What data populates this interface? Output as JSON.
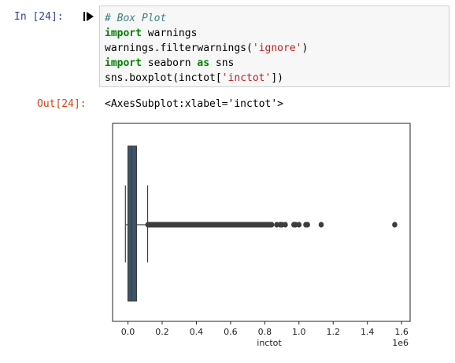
{
  "cell": {
    "in_prompt": "In [24]:",
    "out_prompt": "Out[24]:",
    "code_lines": [
      [
        {
          "t": "# Box Plot",
          "c": "cm"
        }
      ],
      [
        {
          "t": "import",
          "c": "kw"
        },
        {
          "t": " warnings",
          "c": ""
        }
      ],
      [
        {
          "t": "warnings.filterwarnings(",
          "c": ""
        },
        {
          "t": "'ignore'",
          "c": "st"
        },
        {
          "t": ")",
          "c": ""
        }
      ],
      [
        {
          "t": "import",
          "c": "kw"
        },
        {
          "t": " seaborn ",
          "c": ""
        },
        {
          "t": "as",
          "c": "kw"
        },
        {
          "t": " sns",
          "c": ""
        }
      ],
      [
        {
          "t": "sns.boxplot(inctot[",
          "c": ""
        },
        {
          "t": "'inctot'",
          "c": "st"
        },
        {
          "t": "])",
          "c": ""
        }
      ]
    ],
    "output_text": "<AxesSubplot:xlabel='inctot'>"
  },
  "chart_data": {
    "type": "box",
    "xlabel": "inctot",
    "scale_label": "1e6",
    "xlim": [
      -0.09,
      1.65
    ],
    "xticks": [
      0.0,
      0.2,
      0.4,
      0.6,
      0.8,
      1.0,
      1.2,
      1.4,
      1.6
    ],
    "tick_labels": [
      "0.0",
      "0.2",
      "0.4",
      "0.6",
      "0.8",
      "1.0",
      "1.2",
      "1.4",
      "1.6"
    ],
    "grid": false,
    "box": {
      "whisker_low": -0.015,
      "q1": 0.0,
      "median": 0.02,
      "q3": 0.05,
      "whisker_high": 0.115
    },
    "outliers": [
      0.84,
      0.87,
      0.89,
      0.9,
      0.92,
      0.97,
      0.98,
      1.0,
      1.04,
      1.05,
      1.13,
      1.56
    ],
    "outlier_dense_range": [
      0.115,
      0.84
    ],
    "colors": {
      "box_fill": "#3e5568",
      "box_edge": "#3d3d3d",
      "marker": "#3d3d3d",
      "prompt_in": "#303f9f",
      "prompt_out": "#d84315"
    }
  }
}
